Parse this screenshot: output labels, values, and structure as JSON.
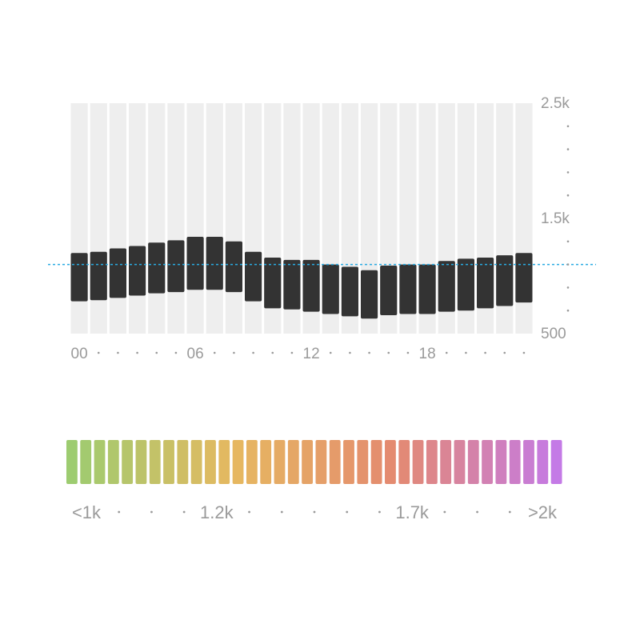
{
  "chart_data": [
    {
      "type": "bar",
      "subtype": "floating-range",
      "x": [
        0,
        1,
        2,
        3,
        4,
        5,
        6,
        7,
        8,
        9,
        10,
        11,
        12,
        13,
        14,
        15,
        16,
        17,
        18,
        19,
        20,
        21,
        22,
        23
      ],
      "low": [
        780,
        790,
        810,
        830,
        850,
        860,
        880,
        880,
        860,
        780,
        720,
        710,
        690,
        670,
        650,
        630,
        660,
        670,
        670,
        690,
        700,
        720,
        740,
        770
      ],
      "high": [
        1200,
        1210,
        1240,
        1260,
        1290,
        1310,
        1340,
        1340,
        1300,
        1210,
        1160,
        1140,
        1140,
        1100,
        1080,
        1050,
        1090,
        1100,
        1100,
        1130,
        1150,
        1160,
        1180,
        1200
      ],
      "reference_line": 1100,
      "reference_line_color": "#29abe2",
      "ylim": [
        500,
        2500
      ],
      "ytick_labels": [
        "500",
        "1.5k",
        "2.5k"
      ],
      "ytick_values": [
        500,
        1500,
        2500
      ],
      "y_minor_tick_values": [
        700,
        900,
        1100,
        1300,
        1700,
        1900,
        2100,
        2300
      ],
      "y_axis_position": "right",
      "xtick_labels": [
        "00",
        "06",
        "12",
        "18"
      ],
      "xtick_values": [
        0,
        6,
        12,
        18
      ],
      "bar_color": "#333333",
      "slot_color": "#eeeeee"
    },
    {
      "type": "legend",
      "subtype": "color-scale",
      "swatch_count": 36,
      "color_stops": [
        "#9dcc70",
        "#e6b860",
        "#e48a70",
        "#c47ae6"
      ],
      "labels": [
        "<1k",
        "1.2k",
        "1.7k",
        ">2k"
      ],
      "label_positions": [
        0,
        4,
        10,
        14
      ],
      "label_slot_count": 15
    }
  ]
}
